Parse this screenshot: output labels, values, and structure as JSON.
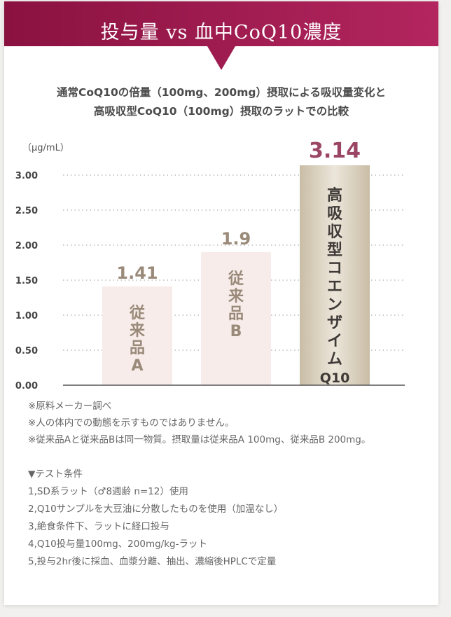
{
  "header": {
    "title": "投与量 vs 血中CoQ10濃度",
    "colors": {
      "start": "#8a1240",
      "end": "#b3255f"
    }
  },
  "subtitle": {
    "line1": "通常CoQ10の倍量（100mg、200mg）摂取による吸収量変化と",
    "line2": "高吸収型CoQ10（100mg）摂取のラットでの比較"
  },
  "chart_data": {
    "type": "bar",
    "unit_label": "（μg/mL）",
    "ylim": [
      0,
      3.0
    ],
    "yticks": [
      "0.00",
      "0.50",
      "1.00",
      "1.50",
      "2.00",
      "2.50",
      "3.00"
    ],
    "grid": true,
    "categories": [
      "従来品A",
      "従来品B",
      "高吸収型コエンザイムQ10"
    ],
    "values": [
      1.41,
      1.9,
      3.14
    ],
    "value_labels": [
      "1.41",
      "1.9",
      "3.14"
    ],
    "bar_labels": [
      [
        "従",
        "来",
        "品",
        "A"
      ],
      [
        "従",
        "来",
        "品",
        "B"
      ],
      [
        "高",
        "吸",
        "収",
        "型",
        "コ",
        "エ",
        "ン",
        "ザ",
        "イ",
        "ム",
        "Q10"
      ]
    ],
    "colors": {
      "bar_light": "#f7ecea",
      "bar_highlight": "#d6cbb6",
      "label_light": "#9a8a79",
      "label_highlight": "#3f3a37",
      "value_light": "#9a8a79",
      "value_highlight": "#9b4565",
      "axis": "#555555",
      "grid": "#9a9a9a"
    }
  },
  "notes": [
    "※原料メーカー調べ",
    "※人の体内での動態を示すものではありません。",
    "※従来品Aと従来品Bは同一物質。摂取量は従来品A 100mg、従来品B 200mg。"
  ],
  "conditions": {
    "heading": "▼テスト条件",
    "items": [
      "1,SD系ラット（♂8週齢 n=12）使用",
      "2,Q10サンプルを大豆油に分散したものを使用（加温なし）",
      "3,絶食条件下、ラットに経口投与",
      "4,Q10投与量100mg、200mg/kg-ラット",
      "5,投与2hr後に採血、血漿分離、抽出、濃縮後HPLCで定量"
    ]
  }
}
